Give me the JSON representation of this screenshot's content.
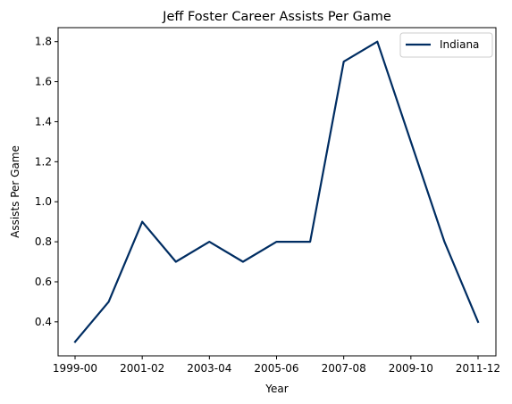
{
  "chart_data": {
    "type": "line",
    "title": "Jeff Foster  Career Assists Per Game",
    "xlabel": "Year",
    "ylabel": "Assists Per Game",
    "x_tick_labels": [
      "1999-00",
      "2001-02",
      "2003-04",
      "2005-06",
      "2007-08",
      "2009-10",
      "2011-12"
    ],
    "y_ticks": [
      "0.4",
      "0.6",
      "0.8",
      "1.0",
      "1.2",
      "1.4",
      "1.6",
      "1.8"
    ],
    "ylim": [
      0.23,
      1.87
    ],
    "grid": false,
    "legend_position": "top-right",
    "seasons": [
      "1999-00",
      "2000-01",
      "2001-02",
      "2002-03",
      "2003-04",
      "2004-05",
      "2005-06",
      "2006-07",
      "2007-08",
      "2008-09",
      "2009-10",
      "2010-11",
      "2011-12"
    ],
    "series": [
      {
        "name": "Indiana",
        "color": "#002D62",
        "values": [
          0.3,
          0.5,
          0.9,
          0.7,
          0.8,
          0.7,
          0.8,
          0.8,
          1.7,
          1.8,
          1.3,
          0.8,
          0.4
        ]
      }
    ]
  }
}
